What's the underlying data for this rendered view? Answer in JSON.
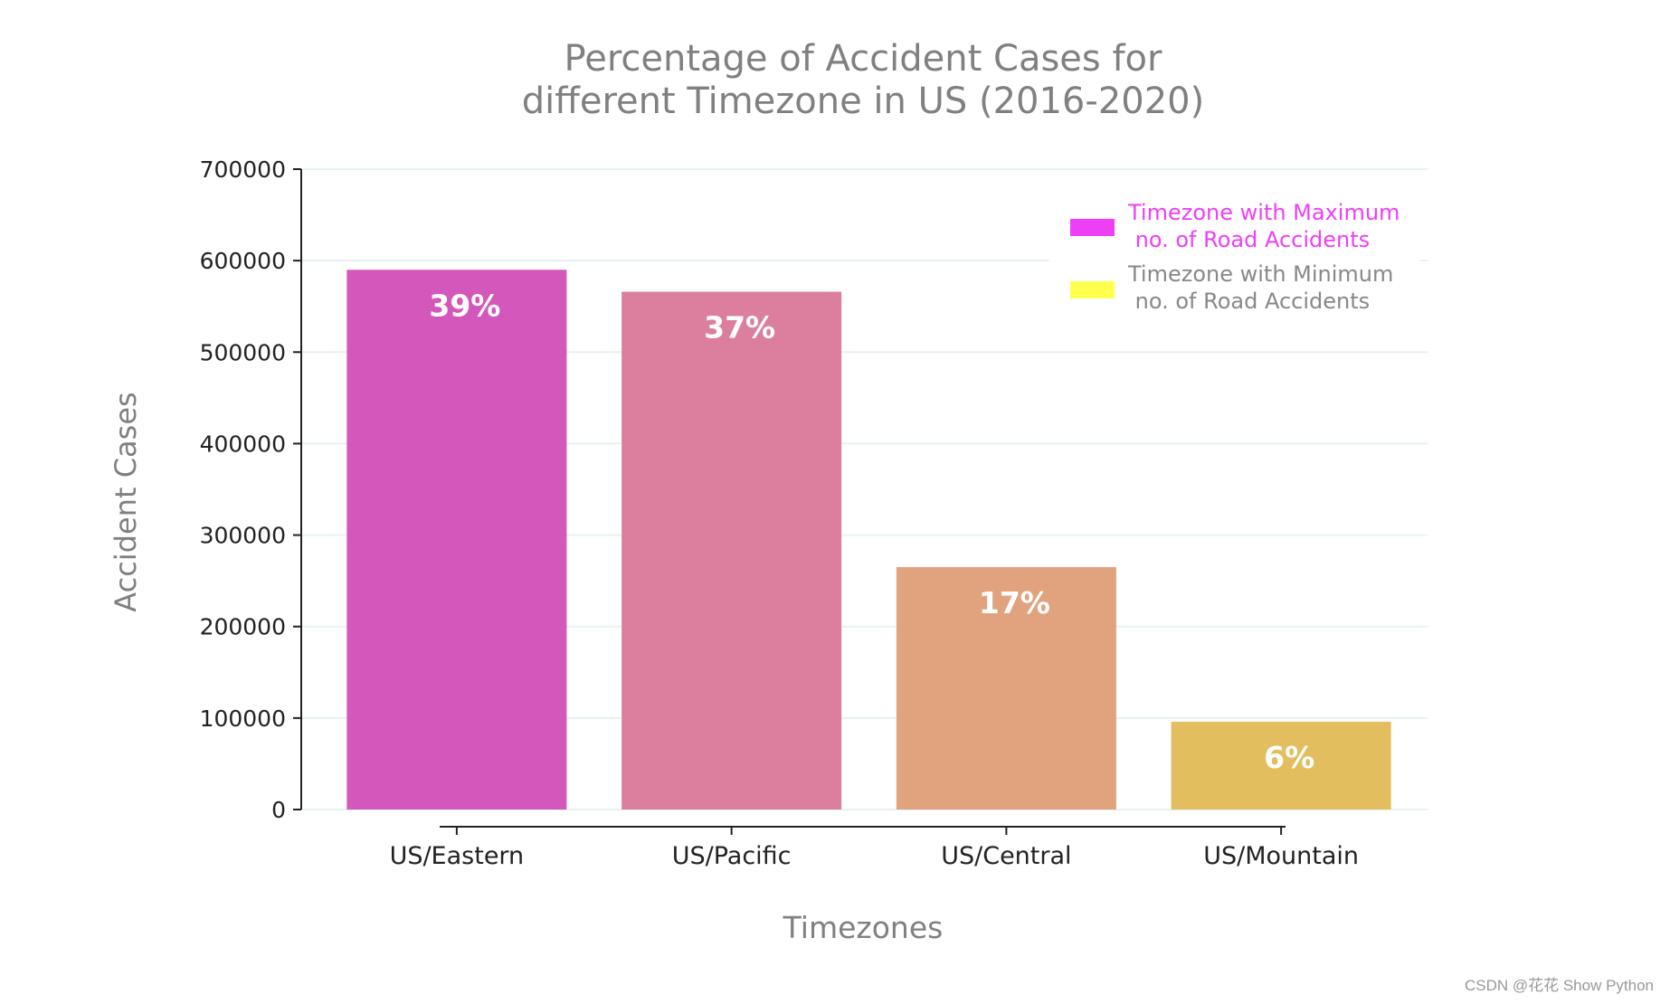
{
  "chart_data": {
    "type": "bar",
    "title_lines": [
      "Percentage of Accident Cases for",
      "different Timezone in US (2016-2020)"
    ],
    "xlabel": "Timezones",
    "ylabel": "Accident Cases",
    "categories": [
      "US/Eastern",
      "US/Pacific",
      "US/Central",
      "US/Mountain"
    ],
    "values": [
      590000,
      566000,
      265000,
      96000
    ],
    "data_labels": [
      "39%",
      "37%",
      "17%",
      "6%"
    ],
    "ylim": [
      0,
      700000
    ],
    "yticks": [
      0,
      100000,
      200000,
      300000,
      400000,
      500000,
      600000,
      700000
    ],
    "ytick_labels": [
      "0",
      "100000",
      "200000",
      "300000",
      "400000",
      "500000",
      "600000",
      "700000"
    ],
    "bar_colors": [
      "#d457bb",
      "#dc7f9e",
      "#e1a37e",
      "#e2be5e"
    ],
    "grid": true,
    "legend": {
      "placement": "upper-right",
      "entries": [
        {
          "label_lines": [
            "Timezone with Maximum",
            " no. of Road Accidents"
          ],
          "swatch": "#ee3ff6",
          "text_color": "#ee3ff6"
        },
        {
          "label_lines": [
            "Timezone with Minimum",
            " no. of Road Accidents"
          ],
          "swatch": "#ffff4d",
          "text_color": "#888888"
        }
      ]
    }
  },
  "watermark": "CSDN @花花 Show Python"
}
